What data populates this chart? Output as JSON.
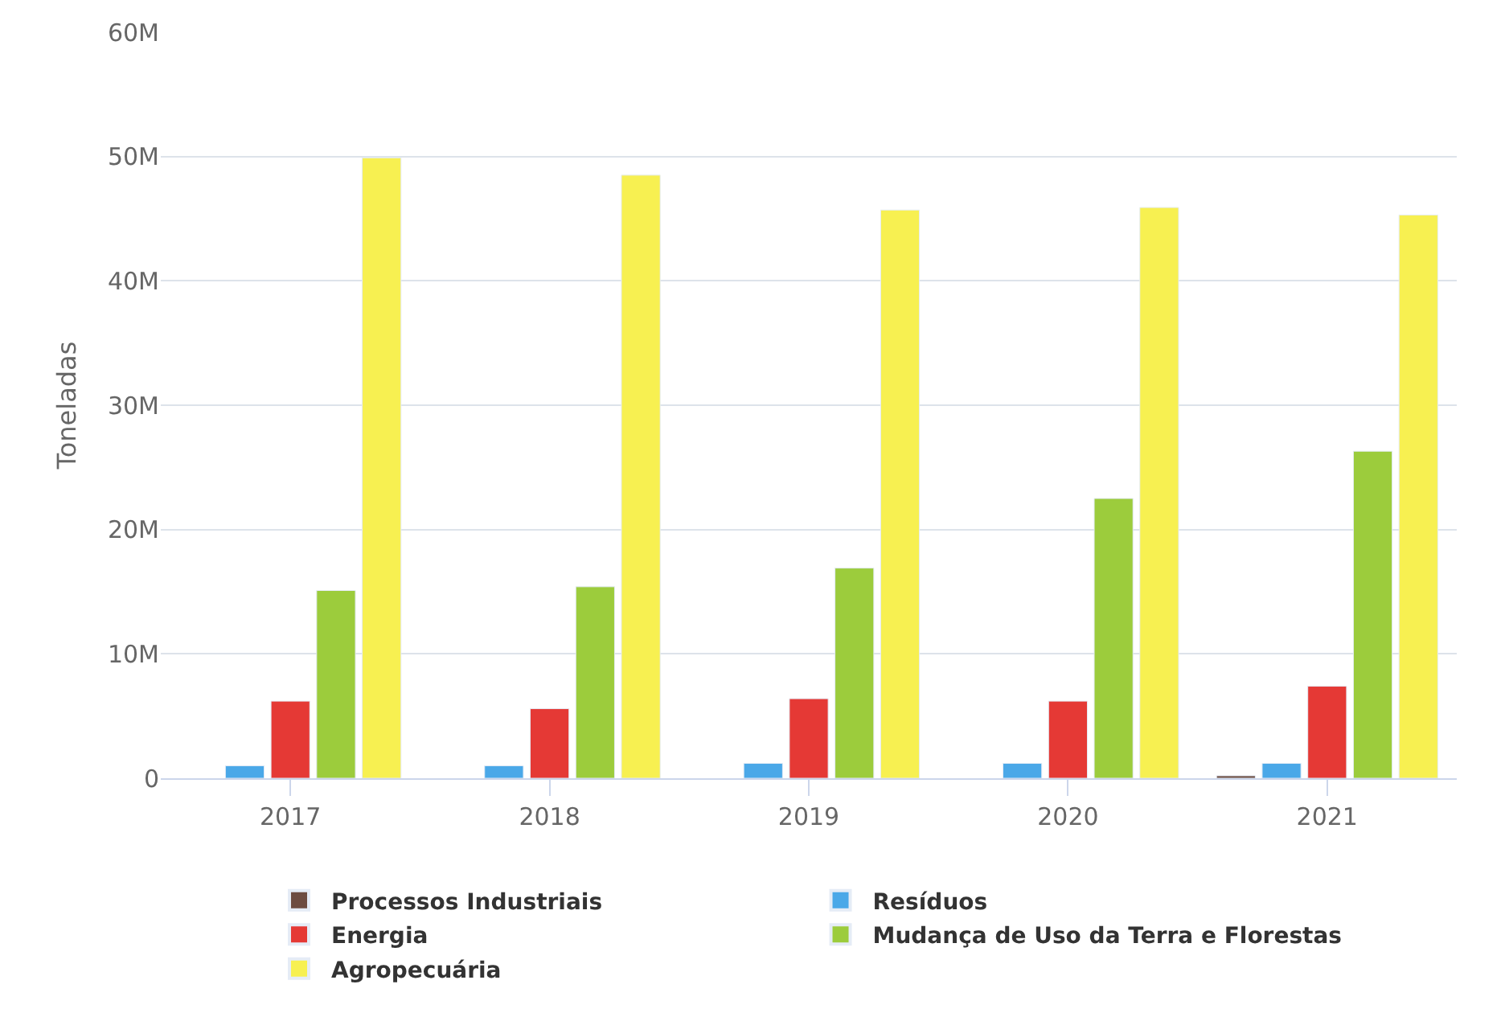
{
  "chart_data": {
    "type": "bar",
    "ylabel": "Toneladas",
    "categories": [
      "2017",
      "2018",
      "2019",
      "2020",
      "2021"
    ],
    "series": [
      {
        "name": "Processos Industriais",
        "color": "#6d4c41",
        "values": [
          null,
          null,
          null,
          null,
          200000
        ]
      },
      {
        "name": "Resíduos",
        "color": "#4aa8e8",
        "values": [
          1000000,
          1000000,
          1200000,
          1200000,
          1200000
        ]
      },
      {
        "name": "Energia",
        "color": "#e53935",
        "values": [
          6200000,
          5600000,
          6400000,
          6200000,
          7400000
        ]
      },
      {
        "name": "Mudança de Uso da Terra e Florestas",
        "color": "#9ccc3c",
        "values": [
          15100000,
          15400000,
          16900000,
          22500000,
          26300000
        ]
      },
      {
        "name": "Agropecuária",
        "color": "#f7f051",
        "values": [
          49900000,
          48500000,
          45700000,
          45900000,
          45300000
        ]
      }
    ],
    "ylim": [
      0,
      60000000
    ],
    "yticks": [
      {
        "value": 0,
        "label": "0"
      },
      {
        "value": 10000000,
        "label": "10M"
      },
      {
        "value": 20000000,
        "label": "20M"
      },
      {
        "value": 30000000,
        "label": "30M"
      },
      {
        "value": 40000000,
        "label": "40M"
      },
      {
        "value": 50000000,
        "label": "50M"
      },
      {
        "value": 60000000,
        "label": "60M"
      }
    ],
    "grid": "y",
    "legend": "bottom"
  }
}
